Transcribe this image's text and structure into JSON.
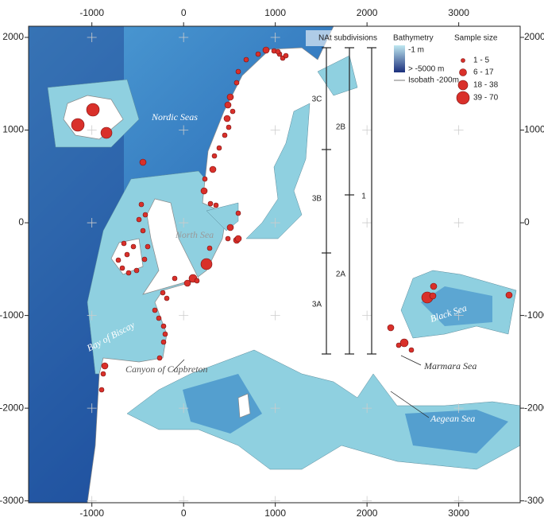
{
  "x_axis": {
    "range": [
      -1690,
      3670
    ],
    "ticks": [
      -1000,
      0,
      1000,
      2000,
      3000
    ]
  },
  "y_axis": {
    "range": [
      -3020,
      2120
    ],
    "ticks": [
      2000,
      1000,
      0,
      -1000,
      -2000,
      -3000
    ]
  },
  "labels": {
    "nordic_seas": "Nordic Seas",
    "north_sea": "North Sea",
    "bay_of_biscay": "Bay of Biscay",
    "canyon": "Canyon of Capbreton",
    "black_sea": "Black Sea",
    "marmara_sea": "Marmara Sea",
    "aegean_sea": "Aegean Sea"
  },
  "subdivisions": {
    "title": "NAt subdivisions",
    "items": [
      "3C",
      "3B",
      "3A",
      "2B",
      "2A",
      "1"
    ]
  },
  "bathymetry": {
    "title": "Bathymetry",
    "top": "-1 m",
    "bottom": "> -5000 m",
    "isobath": "Isobath -200m"
  },
  "sample_size": {
    "title": "Sample size",
    "classes": [
      "1 - 5",
      "6 - 17",
      "18 - 38",
      "39 - 70"
    ]
  }
}
